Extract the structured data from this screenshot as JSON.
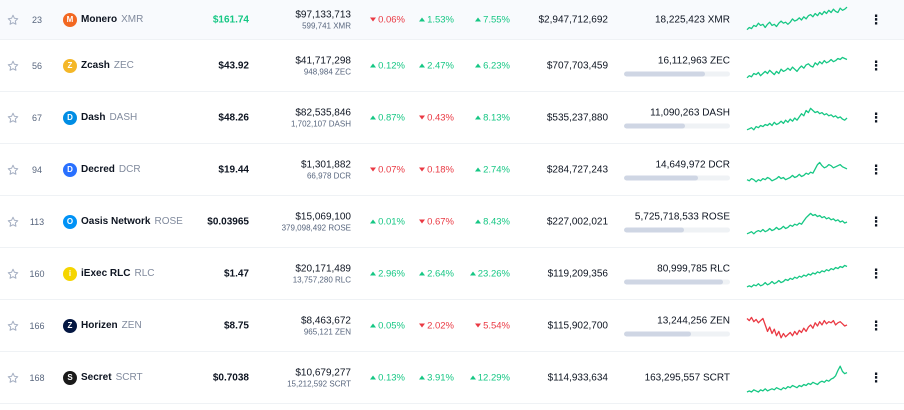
{
  "colors": {
    "up": "#16c784",
    "down": "#ea3943",
    "text": "#0d1421",
    "muted": "#808a9d"
  },
  "rows": [
    {
      "rank": "23",
      "name": "Monero",
      "symbol": "XMR",
      "logo_icon": "monero-logo-icon",
      "logo_color": "#f26822",
      "logo_char": "M",
      "price": "$161.74",
      "price_style": "green",
      "volume_usd": "$97,133,713",
      "volume_coin": "599,741 XMR",
      "h1": "0.06%",
      "h1_dir": "down",
      "h24": "1.53%",
      "h24_dir": "up",
      "d7": "7.55%",
      "d7_dir": "up",
      "market_cap": "$2,947,712,692",
      "supply": "18,225,423 XMR",
      "supply_pct": null,
      "spark_color": "#16c784",
      "spark": [
        22,
        20,
        21,
        18,
        19,
        16,
        18,
        17,
        20,
        17,
        15,
        18,
        17,
        19,
        16,
        14,
        16,
        15,
        17,
        15,
        12,
        14,
        13,
        11,
        13,
        10,
        12,
        9,
        8,
        10,
        7,
        9,
        6,
        8,
        5,
        7,
        4,
        6,
        3,
        5,
        6,
        2,
        4,
        3,
        1
      ]
    },
    {
      "rank": "56",
      "name": "Zcash",
      "symbol": "ZEC",
      "logo_icon": "zcash-logo-icon",
      "logo_color": "#f4b728",
      "logo_char": "Z",
      "price": "$43.92",
      "price_style": "",
      "volume_usd": "$41,717,298",
      "volume_coin": "948,984 ZEC",
      "h1": "0.12%",
      "h1_dir": "up",
      "h24": "2.47%",
      "h24_dir": "up",
      "d7": "6.23%",
      "d7_dir": "up",
      "market_cap": "$707,703,459",
      "supply": "16,112,963 ZEC",
      "supply_pct": 0.76,
      "spark_color": "#16c784",
      "spark": [
        24,
        22,
        23,
        20,
        21,
        19,
        22,
        20,
        18,
        20,
        17,
        19,
        21,
        18,
        20,
        16,
        18,
        17,
        15,
        17,
        14,
        16,
        18,
        15,
        13,
        15,
        12,
        11,
        13,
        14,
        10,
        12,
        9,
        11,
        8,
        10,
        9,
        7,
        9,
        8,
        6,
        7,
        5,
        6,
        7
      ]
    },
    {
      "rank": "67",
      "name": "Dash",
      "symbol": "DASH",
      "logo_icon": "dash-logo-icon",
      "logo_color": "#008de4",
      "logo_char": "D",
      "price": "$48.26",
      "price_style": "",
      "volume_usd": "$82,535,846",
      "volume_coin": "1,702,107 DASH",
      "h1": "0.87%",
      "h1_dir": "up",
      "h24": "0.43%",
      "h24_dir": "down",
      "d7": "8.13%",
      "d7_dir": "up",
      "market_cap": "$535,237,880",
      "supply": "11,090,263 DASH",
      "supply_pct": 0.58,
      "spark_color": "#16c784",
      "spark": [
        24,
        23,
        22,
        24,
        21,
        22,
        20,
        21,
        19,
        20,
        18,
        20,
        17,
        19,
        18,
        16,
        18,
        15,
        17,
        14,
        16,
        13,
        15,
        12,
        9,
        11,
        6,
        8,
        4,
        6,
        8,
        7,
        9,
        8,
        10,
        9,
        11,
        10,
        12,
        11,
        13,
        12,
        14,
        15,
        13
      ]
    },
    {
      "rank": "94",
      "name": "Decred",
      "symbol": "DCR",
      "logo_icon": "decred-logo-icon",
      "logo_color": "#2970ff",
      "logo_char": "D",
      "price": "$19.44",
      "price_style": "",
      "volume_usd": "$1,301,882",
      "volume_coin": "66,978 DCR",
      "h1": "0.07%",
      "h1_dir": "down",
      "h24": "0.18%",
      "h24_dir": "down",
      "d7": "2.74%",
      "d7_dir": "up",
      "market_cap": "$284,727,243",
      "supply": "14,649,972 DCR",
      "supply_pct": 0.7,
      "spark_color": "#16c784",
      "spark": [
        22,
        23,
        21,
        22,
        24,
        22,
        23,
        21,
        22,
        20,
        21,
        23,
        22,
        21,
        19,
        21,
        20,
        22,
        21,
        20,
        18,
        20,
        19,
        17,
        19,
        18,
        16,
        17,
        15,
        16,
        12,
        8,
        6,
        9,
        11,
        10,
        8,
        9,
        11,
        10,
        9,
        8,
        10,
        11,
        12
      ]
    },
    {
      "rank": "113",
      "name": "Oasis Network",
      "symbol": "ROSE",
      "logo_icon": "oasis-network-logo-icon",
      "logo_color": "#0092f6",
      "logo_char": "O",
      "price": "$0.03965",
      "price_style": "",
      "volume_usd": "$15,069,100",
      "volume_coin": "379,098,492 ROSE",
      "h1": "0.01%",
      "h1_dir": "up",
      "h24": "0.67%",
      "h24_dir": "down",
      "d7": "8.43%",
      "d7_dir": "up",
      "market_cap": "$227,002,021",
      "supply": "5,725,718,533 ROSE",
      "supply_pct": 0.57,
      "spark_color": "#16c784",
      "spark": [
        24,
        23,
        22,
        24,
        22,
        21,
        22,
        20,
        22,
        21,
        19,
        21,
        20,
        18,
        20,
        19,
        17,
        19,
        18,
        16,
        17,
        15,
        16,
        14,
        15,
        12,
        9,
        7,
        5,
        7,
        6,
        8,
        7,
        9,
        8,
        10,
        9,
        11,
        10,
        12,
        11,
        13,
        12,
        14,
        13
      ]
    },
    {
      "rank": "160",
      "name": "iExec RLC",
      "symbol": "RLC",
      "logo_icon": "iexec-rlc-logo-icon",
      "logo_color": "#f5d500",
      "logo_char": "i",
      "price": "$1.47",
      "price_style": "",
      "volume_usd": "$20,171,489",
      "volume_coin": "13,757,280 RLC",
      "h1": "2.96%",
      "h1_dir": "up",
      "h24": "2.64%",
      "h24_dir": "up",
      "d7": "23.26%",
      "d7_dir": "up",
      "market_cap": "$119,209,356",
      "supply": "80,999,785 RLC",
      "supply_pct": 0.93,
      "spark_color": "#16c784",
      "spark": [
        25,
        24,
        25,
        23,
        24,
        22,
        24,
        23,
        21,
        23,
        22,
        20,
        22,
        21,
        19,
        21,
        20,
        18,
        19,
        17,
        18,
        16,
        17,
        15,
        16,
        14,
        15,
        13,
        14,
        12,
        13,
        11,
        12,
        10,
        11,
        9,
        10,
        8,
        9,
        7,
        8,
        6,
        7,
        5,
        6
      ]
    },
    {
      "rank": "166",
      "name": "Horizen",
      "symbol": "ZEN",
      "logo_icon": "horizen-logo-icon",
      "logo_color": "#041742",
      "logo_char": "Z",
      "price": "$8.75",
      "price_style": "",
      "volume_usd": "$8,463,672",
      "volume_coin": "965,121 ZEN",
      "h1": "0.05%",
      "h1_dir": "up",
      "h24": "2.02%",
      "h24_dir": "down",
      "d7": "5.54%",
      "d7_dir": "down",
      "market_cap": "$115,902,700",
      "supply": "13,244,256 ZEN",
      "supply_pct": 0.63,
      "spark_color": "#ea3943",
      "spark": [
        6,
        8,
        5,
        9,
        7,
        10,
        8,
        6,
        12,
        18,
        14,
        20,
        16,
        22,
        18,
        24,
        20,
        23,
        21,
        19,
        22,
        18,
        21,
        17,
        19,
        15,
        18,
        14,
        12,
        15,
        10,
        13,
        9,
        12,
        8,
        11,
        9,
        10,
        8,
        12,
        10,
        9,
        11,
        13,
        12
      ]
    },
    {
      "rank": "168",
      "name": "Secret",
      "symbol": "SCRT",
      "logo_icon": "secret-logo-icon",
      "logo_color": "#1a1a1a",
      "logo_char": "S",
      "price": "$0.7038",
      "price_style": "",
      "volume_usd": "$10,679,277",
      "volume_coin": "15,212,592 SCRT",
      "h1": "0.13%",
      "h1_dir": "up",
      "h24": "3.91%",
      "h24_dir": "up",
      "d7": "12.29%",
      "d7_dir": "up",
      "market_cap": "$114,933,634",
      "supply": "163,295,557 SCRT",
      "supply_pct": null,
      "spark_color": "#16c784",
      "spark": [
        26,
        25,
        26,
        24,
        25,
        26,
        24,
        25,
        23,
        25,
        24,
        23,
        24,
        22,
        23,
        24,
        22,
        23,
        21,
        22,
        20,
        21,
        22,
        20,
        21,
        19,
        20,
        18,
        19,
        17,
        18,
        19,
        17,
        16,
        17,
        15,
        16,
        14,
        13,
        11,
        6,
        2,
        7,
        9,
        8
      ]
    }
  ]
}
